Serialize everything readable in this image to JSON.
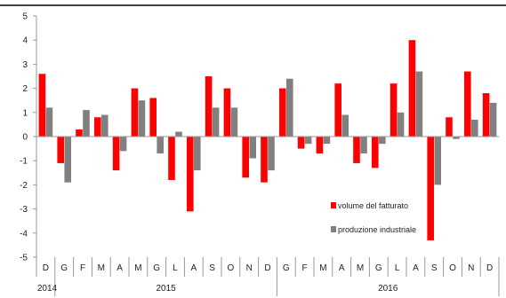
{
  "chart_data": {
    "type": "bar",
    "categories": [
      "D",
      "G",
      "F",
      "M",
      "A",
      "M",
      "G",
      "L",
      "A",
      "S",
      "O",
      "N",
      "D",
      "G",
      "F",
      "M",
      "A",
      "M",
      "G",
      "L",
      "A",
      "S",
      "O",
      "N",
      "D"
    ],
    "years": [
      {
        "label": "2014",
        "start": 0,
        "end": 0
      },
      {
        "label": "2015",
        "start": 1,
        "end": 12
      },
      {
        "label": "2016",
        "start": 13,
        "end": 24
      }
    ],
    "series": [
      {
        "name": "volume del fatturato",
        "color": "#ff0000",
        "values": [
          2.6,
          -1.1,
          0.3,
          0.8,
          -1.4,
          2.0,
          1.6,
          -1.8,
          -3.1,
          2.5,
          2.0,
          -1.7,
          -1.9,
          2.0,
          -0.5,
          -0.7,
          2.2,
          -1.1,
          -1.3,
          2.2,
          4.0,
          -4.3,
          0.8,
          2.7,
          1.8
        ]
      },
      {
        "name": "produzione industriale",
        "color": "#808080",
        "values": [
          1.2,
          -1.9,
          1.1,
          0.9,
          -0.6,
          1.5,
          -0.7,
          0.2,
          -1.4,
          1.2,
          1.2,
          -0.9,
          -1.4,
          2.4,
          -0.3,
          -0.3,
          0.9,
          -0.7,
          -0.3,
          1.0,
          2.7,
          -2.0,
          -0.1,
          0.7,
          1.4
        ]
      }
    ],
    "ylim": [
      -5,
      5
    ],
    "yticks": [
      -5,
      -4,
      -3,
      -2,
      -1,
      0,
      1,
      2,
      3,
      4,
      5
    ],
    "legend_position": "lower-right"
  }
}
